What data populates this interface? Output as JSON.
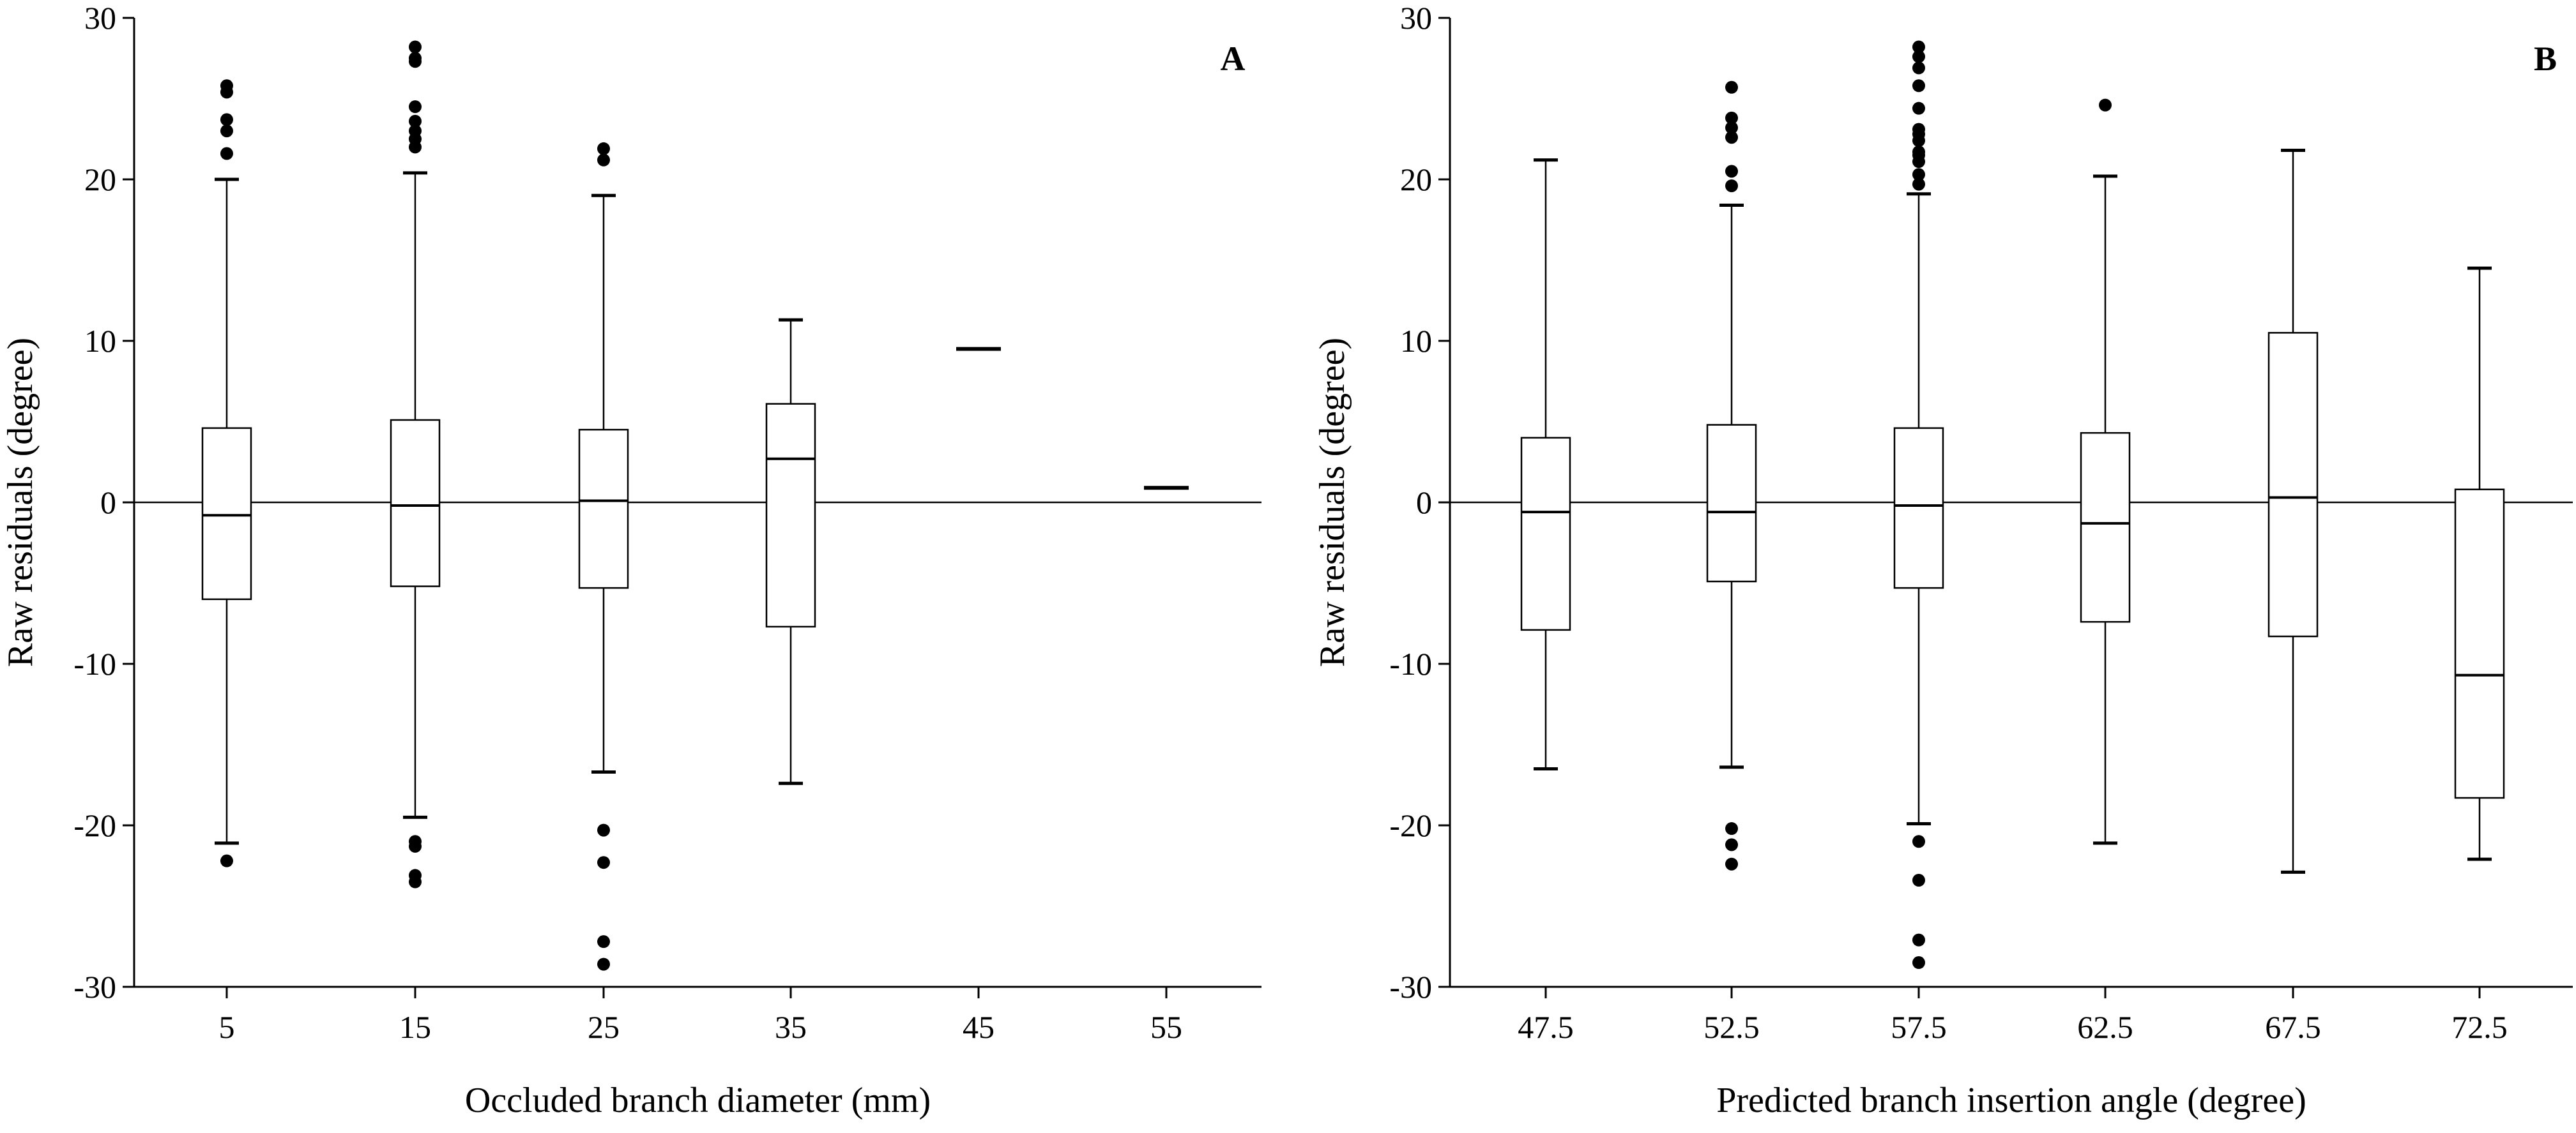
{
  "chart_data": [
    {
      "type": "boxplot",
      "panel_label": "A",
      "xlabel": "Occluded branch diameter (mm)",
      "ylabel": "Raw residuals (degree)",
      "ylim": [
        -30,
        30
      ],
      "yticks": [
        -30,
        -20,
        -10,
        0,
        10,
        20,
        30
      ],
      "reference_line": 0,
      "categories": [
        "5",
        "15",
        "25",
        "35",
        "45",
        "55"
      ],
      "boxes": [
        {
          "category": "5",
          "whisker_low": -21.1,
          "q1": -6.0,
          "median": -0.8,
          "q3": 4.6,
          "whisker_high": 20.0,
          "outliers": [
            25.8,
            25.4,
            23.7,
            23.0,
            21.6,
            -22.2
          ]
        },
        {
          "category": "15",
          "whisker_low": -19.5,
          "q1": -5.2,
          "median": -0.2,
          "q3": 5.1,
          "whisker_high": 20.4,
          "outliers": [
            28.2,
            27.5,
            27.3,
            24.5,
            23.6,
            23.0,
            22.5,
            22.0,
            -21.0,
            -21.3,
            -23.1,
            -23.5
          ]
        },
        {
          "category": "25",
          "whisker_low": -16.7,
          "q1": -5.3,
          "median": 0.1,
          "q3": 4.5,
          "whisker_high": 19.0,
          "outliers": [
            21.9,
            21.2,
            -20.3,
            -22.3,
            -27.2,
            -28.6
          ]
        },
        {
          "category": "35",
          "whisker_low": -17.4,
          "q1": -7.7,
          "median": 2.7,
          "q3": 6.1,
          "whisker_high": 11.3,
          "outliers": []
        },
        {
          "category": "45",
          "single_value": 9.5
        },
        {
          "category": "55",
          "single_value": 0.9
        }
      ]
    },
    {
      "type": "boxplot",
      "panel_label": "B",
      "xlabel": "Predicted branch insertion angle (degree)",
      "ylabel": "Raw residuals (degree)",
      "ylim": [
        -30,
        30
      ],
      "yticks": [
        -30,
        -20,
        -10,
        0,
        10,
        20,
        30
      ],
      "reference_line": 0,
      "categories": [
        "47.5",
        "52.5",
        "57.5",
        "62.5",
        "67.5",
        "72.5"
      ],
      "boxes": [
        {
          "category": "47.5",
          "whisker_low": -16.5,
          "q1": -7.9,
          "median": -0.6,
          "q3": 4.0,
          "whisker_high": 21.2,
          "outliers": []
        },
        {
          "category": "52.5",
          "whisker_low": -16.4,
          "q1": -4.9,
          "median": -0.6,
          "q3": 4.8,
          "whisker_high": 18.4,
          "outliers": [
            25.7,
            23.8,
            23.2,
            22.6,
            20.5,
            19.6,
            -20.2,
            -21.2,
            -22.4
          ]
        },
        {
          "category": "57.5",
          "whisker_low": -19.9,
          "q1": -5.3,
          "median": -0.2,
          "q3": 4.6,
          "whisker_high": 19.1,
          "outliers": [
            28.2,
            27.6,
            26.9,
            25.8,
            24.4,
            23.1,
            22.8,
            22.4,
            21.7,
            21.5,
            21.1,
            20.3,
            19.7,
            -21.0,
            -23.4,
            -27.1,
            -28.5
          ]
        },
        {
          "category": "62.5",
          "whisker_low": -21.1,
          "q1": -7.4,
          "median": -1.3,
          "q3": 4.3,
          "whisker_high": 20.2,
          "outliers": [
            24.6
          ]
        },
        {
          "category": "67.5",
          "whisker_low": -22.9,
          "q1": -8.3,
          "median": 0.3,
          "q3": 10.5,
          "whisker_high": 21.8,
          "outliers": []
        },
        {
          "category": "72.5",
          "whisker_low": -22.1,
          "q1": -18.3,
          "median": -10.7,
          "q3": 0.8,
          "whisker_high": 14.5,
          "outliers": []
        }
      ]
    }
  ]
}
